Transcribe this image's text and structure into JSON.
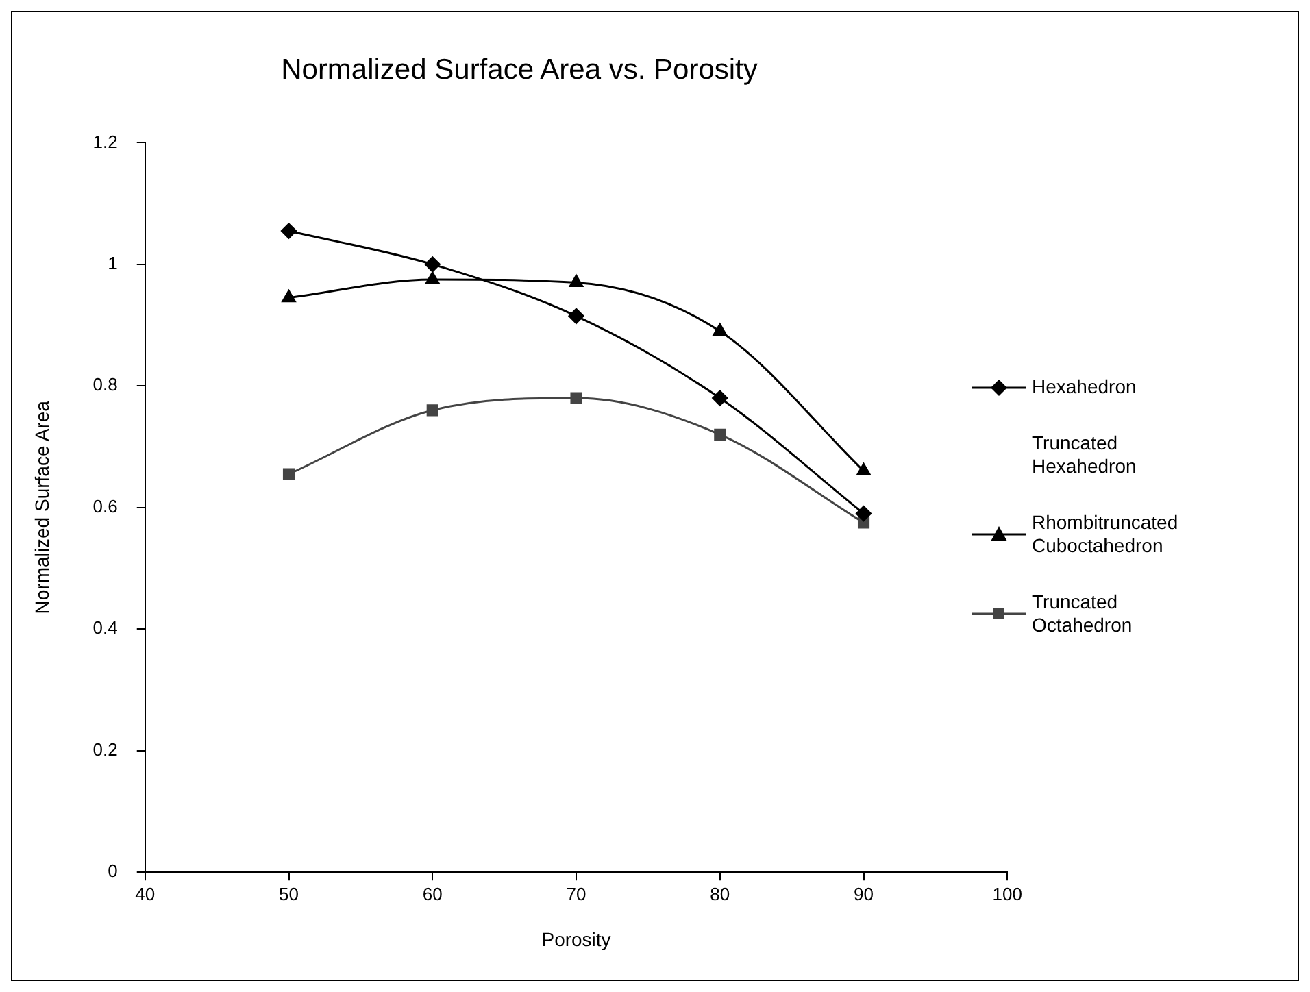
{
  "chart_data": {
    "type": "line",
    "title": "Normalized Surface Area vs. Porosity",
    "xlabel": "Porosity",
    "ylabel": "Normalized Surface Area",
    "x": [
      50,
      60,
      70,
      80,
      90
    ],
    "series": [
      {
        "name": "Hexahedron",
        "color": "#000000",
        "marker": "diamond",
        "values": [
          1.055,
          1.0,
          0.915,
          0.78,
          0.59
        ]
      },
      {
        "name": "Truncated Hexahedron",
        "marker": "none",
        "values": [
          null,
          null,
          null,
          null,
          null
        ]
      },
      {
        "name": "Rhombitruncated Cuboctahedron",
        "color": "#000000",
        "marker": "triangle",
        "values": [
          0.945,
          0.975,
          0.97,
          0.89,
          0.66
        ]
      },
      {
        "name": "Truncated Octahedron",
        "color": "#444444",
        "marker": "square",
        "values": [
          0.655,
          0.76,
          0.78,
          0.72,
          0.575
        ]
      }
    ],
    "xlim": [
      40,
      100
    ],
    "xticks": [
      40,
      50,
      60,
      70,
      80,
      90,
      100
    ],
    "ylim": [
      0,
      1.2
    ],
    "yticks": [
      0,
      0.2,
      0.4,
      0.6,
      0.8,
      1,
      1.2
    ],
    "grid": false,
    "legend": "right"
  }
}
